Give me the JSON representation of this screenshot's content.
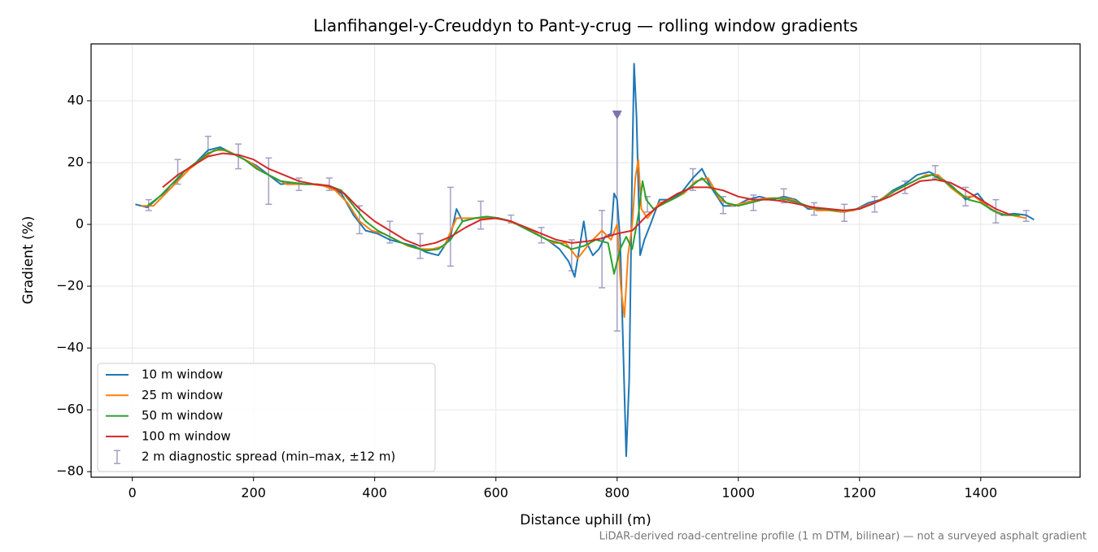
{
  "chart_data": {
    "type": "line",
    "title": "Llanfihangel-y-Creuddyn to Pant-y-crug — rolling window gradients",
    "x_label": "Distance uphill (m)",
    "y_label": "Gradient (%)",
    "footnote": "LiDAR-derived road-centreline profile (1 m DTM, bilinear) — not a surveyed asphalt gradient",
    "xlim": [
      -68,
      1564
    ],
    "ylim": [
      -81.8,
      58.4
    ],
    "xticks": [
      0,
      200,
      400,
      600,
      800,
      1000,
      1200,
      1400
    ],
    "yticks": [
      {
        "value": -80,
        "label": "−80"
      },
      {
        "value": -60,
        "label": "−60"
      },
      {
        "value": -40,
        "label": "−40"
      },
      {
        "value": -20,
        "label": "−20"
      },
      0,
      20,
      40
    ],
    "grid": true,
    "legend": "lower left",
    "series": [
      {
        "name": "10 m window",
        "color": "#1f77b4",
        "x": [
          5,
          25,
          45,
          65,
          85,
          105,
          125,
          145,
          165,
          185,
          205,
          225,
          245,
          265,
          285,
          305,
          325,
          345,
          365,
          385,
          405,
          425,
          445,
          465,
          485,
          505,
          525,
          535,
          545,
          565,
          585,
          605,
          625,
          645,
          665,
          685,
          705,
          720,
          730,
          740,
          745,
          750,
          760,
          770,
          780,
          790,
          795,
          800,
          805,
          810,
          815,
          820,
          825,
          828,
          832,
          838,
          845,
          855,
          870,
          885,
          905,
          925,
          940,
          955,
          975,
          995,
          1015,
          1035,
          1055,
          1075,
          1095,
          1115,
          1135,
          1155,
          1175,
          1195,
          1215,
          1235,
          1255,
          1275,
          1295,
          1315,
          1335,
          1355,
          1375,
          1395,
          1415,
          1435,
          1455,
          1475,
          1488
        ],
        "values": [
          6.5,
          5.5,
          9,
          12,
          17,
          20,
          24,
          25,
          23,
          21,
          19,
          16,
          13,
          13.5,
          13,
          13,
          12,
          10,
          3,
          -2,
          -3,
          -5,
          -6,
          -7,
          -9,
          -10,
          -4,
          5,
          1,
          2,
          2.5,
          2,
          1,
          -1,
          -3,
          -5,
          -8,
          -12,
          -17,
          -5,
          1,
          -6,
          -10,
          -8,
          -4,
          -3,
          10,
          8,
          -5,
          -40,
          -75,
          -50,
          20,
          52,
          35,
          -10,
          -5,
          0,
          8,
          8,
          10,
          15,
          18,
          12,
          6,
          6,
          8,
          9,
          8,
          9,
          8,
          5,
          5,
          4.5,
          4,
          5,
          7,
          8,
          11,
          13,
          16,
          17,
          15,
          12,
          8,
          10,
          5,
          3,
          3.5,
          3,
          1.5
        ]
      },
      {
        "name": "25 m window",
        "color": "#ff7f0e",
        "x": [
          15,
          35,
          55,
          75,
          95,
          115,
          135,
          155,
          175,
          195,
          215,
          235,
          255,
          275,
          295,
          315,
          335,
          355,
          375,
          395,
          415,
          435,
          455,
          475,
          495,
          515,
          535,
          555,
          575,
          595,
          615,
          635,
          655,
          675,
          695,
          715,
          735,
          755,
          775,
          790,
          800,
          806,
          812,
          818,
          825,
          830,
          835,
          840,
          850,
          870,
          890,
          910,
          930,
          950,
          970,
          990,
          1010,
          1030,
          1050,
          1070,
          1090,
          1110,
          1130,
          1150,
          1170,
          1190,
          1210,
          1230,
          1250,
          1270,
          1290,
          1310,
          1330,
          1350,
          1370,
          1390,
          1410,
          1430,
          1450,
          1475
        ],
        "values": [
          6,
          6,
          10,
          14,
          18,
          21,
          24,
          24,
          22,
          20,
          17,
          15,
          13,
          13,
          13,
          12.5,
          11,
          7,
          1,
          -2,
          -3,
          -5,
          -7,
          -8,
          -8,
          -7,
          2,
          2,
          2,
          2,
          1.5,
          0,
          -1.5,
          -4,
          -6,
          -6,
          -11,
          -6,
          -2,
          -5,
          0,
          -20,
          -30,
          -10,
          0,
          15,
          21,
          5,
          2,
          7,
          8,
          10,
          14,
          15,
          8,
          6,
          7,
          8,
          8.5,
          8.5,
          8,
          6,
          4.5,
          4.5,
          4,
          4.5,
          6,
          7.5,
          10,
          12,
          14,
          16,
          16,
          12,
          9,
          9,
          6,
          3.5,
          3,
          2
        ]
      },
      {
        "name": "50 m window",
        "color": "#2ca02c",
        "x": [
          25,
          45,
          65,
          85,
          105,
          125,
          145,
          165,
          185,
          205,
          225,
          245,
          265,
          285,
          305,
          325,
          345,
          365,
          385,
          405,
          425,
          445,
          465,
          485,
          505,
          525,
          545,
          565,
          585,
          605,
          625,
          645,
          665,
          685,
          705,
          725,
          745,
          765,
          785,
          795,
          805,
          815,
          825,
          835,
          842,
          848,
          860,
          880,
          900,
          920,
          940,
          960,
          980,
          1000,
          1020,
          1040,
          1060,
          1080,
          1100,
          1120,
          1140,
          1160,
          1180,
          1200,
          1220,
          1240,
          1260,
          1280,
          1300,
          1320,
          1340,
          1360,
          1380,
          1400,
          1420,
          1440,
          1465
        ],
        "values": [
          6,
          9,
          13,
          17,
          20,
          23,
          24.5,
          23,
          21,
          18,
          16,
          14,
          13.5,
          13,
          13,
          12.5,
          11,
          6,
          1,
          -2,
          -4,
          -6,
          -7.5,
          -8.5,
          -8,
          -5,
          1,
          2,
          2.5,
          2,
          1,
          -1,
          -3,
          -5,
          -6,
          -8,
          -7,
          -5,
          -6,
          -16,
          -8,
          -4,
          -8,
          3,
          14,
          8,
          5,
          7,
          9,
          12,
          15,
          11,
          7,
          6,
          7,
          8,
          8.5,
          8,
          7,
          5.5,
          5,
          4.5,
          4.5,
          5,
          6.5,
          8.5,
          11,
          13,
          15,
          16,
          14,
          11,
          8,
          7,
          4.5,
          3,
          3
        ]
      },
      {
        "name": "100 m window",
        "color": "#d62728",
        "x": [
          50,
          75,
          100,
          125,
          150,
          175,
          200,
          225,
          250,
          275,
          300,
          325,
          350,
          375,
          400,
          425,
          450,
          475,
          500,
          525,
          550,
          575,
          600,
          625,
          650,
          675,
          700,
          725,
          750,
          775,
          800,
          825,
          850,
          875,
          900,
          925,
          950,
          975,
          1000,
          1025,
          1050,
          1075,
          1100,
          1125,
          1150,
          1175,
          1200,
          1225,
          1250,
          1275,
          1300,
          1325,
          1350,
          1375,
          1400,
          1425,
          1450
        ],
        "values": [
          12,
          16,
          19,
          22,
          23,
          22.5,
          21,
          18,
          16,
          14,
          13,
          12.5,
          10,
          5,
          1,
          -2,
          -5,
          -7,
          -6,
          -4,
          -1,
          1.5,
          2,
          1,
          -1,
          -3,
          -5,
          -6,
          -5.5,
          -4.5,
          -3,
          -2,
          3,
          7,
          10,
          12,
          12,
          11,
          9,
          8,
          8,
          7.5,
          6.5,
          5.5,
          5,
          4.5,
          5,
          7,
          9,
          11.5,
          14,
          14.5,
          13.5,
          11,
          8,
          5,
          3
        ]
      }
    ],
    "error_bars": {
      "name": "2 m diagnostic spread (min–max, ±12 m)",
      "color": "#a39fc4",
      "x": [
        27,
        75,
        125,
        175,
        225,
        275,
        325,
        375,
        425,
        475,
        525,
        575,
        625,
        675,
        725,
        775,
        800,
        850,
        925,
        975,
        1025,
        1075,
        1125,
        1175,
        1225,
        1275,
        1325,
        1375,
        1425,
        1475
      ],
      "low": [
        4.5,
        13,
        22,
        18,
        6.5,
        11,
        11,
        -3,
        -6,
        -11,
        -13.5,
        -1.5,
        0.5,
        -6,
        -15,
        -20.5,
        -34.5,
        4,
        11,
        3.5,
        4.5,
        7,
        3,
        1,
        4,
        10,
        15,
        6,
        0.5,
        1
      ],
      "high": [
        8,
        21,
        28.5,
        26,
        21.5,
        15,
        15,
        6,
        1,
        -3,
        12,
        7.5,
        3,
        -1,
        -5,
        4.5,
        35.5,
        9,
        18,
        9,
        9.5,
        11.5,
        7,
        6.5,
        9,
        14,
        19,
        12,
        8,
        4.5
      ]
    },
    "flag": {
      "x": [
        800
      ],
      "values": [
        35.5
      ],
      "color": "#8073ac"
    }
  }
}
